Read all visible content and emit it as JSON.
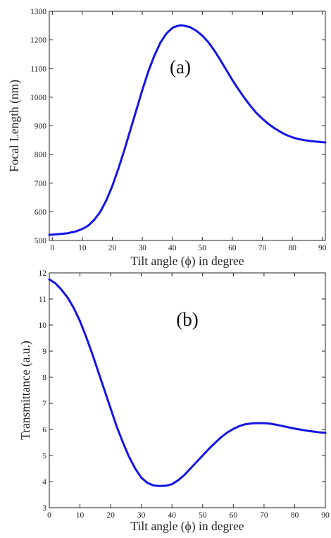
{
  "colors": {
    "curve": "#1414e6",
    "axis": "#222222"
  },
  "chart_data": [
    {
      "type": "line",
      "annotation": "(a)",
      "xlabel": "Tilt angle (ϕ) in degree",
      "ylabel": "Focal Length (nm)",
      "xlim": [
        -1,
        91
      ],
      "ylim": [
        500,
        1300
      ],
      "xticks": [
        0,
        10,
        20,
        30,
        40,
        50,
        60,
        70,
        80,
        90
      ],
      "yticks": [
        500,
        600,
        700,
        800,
        900,
        1000,
        1100,
        1200,
        1300
      ],
      "series": [
        {
          "x": [
            -1,
            0,
            5,
            8,
            10,
            12,
            14,
            16,
            18,
            20,
            22,
            24,
            26,
            28,
            30,
            32,
            34,
            36,
            38,
            40,
            42,
            43,
            44,
            46,
            48,
            50,
            52,
            54,
            56,
            58,
            60,
            62,
            64,
            66,
            68,
            70,
            72,
            74,
            76,
            78,
            80,
            82,
            84,
            86,
            88,
            90,
            91
          ],
          "y": [
            520,
            520,
            525,
            532,
            540,
            552,
            572,
            600,
            640,
            690,
            750,
            815,
            885,
            955,
            1025,
            1090,
            1145,
            1190,
            1222,
            1242,
            1250,
            1251,
            1250,
            1244,
            1232,
            1215,
            1192,
            1163,
            1130,
            1095,
            1060,
            1028,
            998,
            970,
            945,
            925,
            907,
            892,
            879,
            868,
            860,
            854,
            850,
            847,
            845,
            843,
            842
          ]
        }
      ]
    },
    {
      "type": "line",
      "annotation": "(b)",
      "xlabel": "Tilt angle (ϕ) in degree",
      "ylabel": "Transmittance (a.u.)",
      "xlim": [
        0,
        90
      ],
      "ylim": [
        3,
        12
      ],
      "xticks": [
        0,
        10,
        20,
        30,
        40,
        50,
        60,
        70,
        80,
        90
      ],
      "yticks": [
        3,
        4,
        5,
        6,
        7,
        8,
        9,
        10,
        11,
        12
      ],
      "series": [
        {
          "x": [
            0,
            2,
            4,
            6,
            8,
            10,
            12,
            14,
            16,
            18,
            20,
            22,
            24,
            26,
            28,
            30,
            32,
            34,
            36,
            38,
            40,
            42,
            44,
            46,
            48,
            50,
            52,
            54,
            56,
            58,
            60,
            62,
            64,
            66,
            68,
            70,
            72,
            74,
            76,
            78,
            80,
            82,
            84,
            86,
            88,
            90
          ],
          "y": [
            11.75,
            11.6,
            11.35,
            11.05,
            10.65,
            10.15,
            9.55,
            8.9,
            8.2,
            7.5,
            6.8,
            6.1,
            5.5,
            4.95,
            4.5,
            4.15,
            3.95,
            3.85,
            3.83,
            3.84,
            3.9,
            4.05,
            4.25,
            4.5,
            4.75,
            5.0,
            5.25,
            5.48,
            5.7,
            5.88,
            6.02,
            6.13,
            6.2,
            6.23,
            6.24,
            6.24,
            6.22,
            6.18,
            6.13,
            6.08,
            6.03,
            5.99,
            5.95,
            5.92,
            5.89,
            5.87
          ]
        }
      ]
    }
  ]
}
